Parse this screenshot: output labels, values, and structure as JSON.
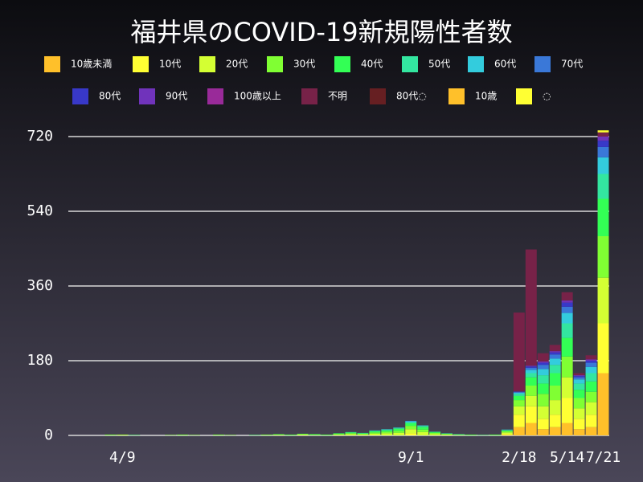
{
  "chart_data": {
    "type": "stacked_bar",
    "title": "福井県のCOVID-19新規陽性者数",
    "categories": [
      null,
      null,
      null,
      null,
      "4/9",
      null,
      null,
      null,
      null,
      null,
      null,
      null,
      null,
      null,
      null,
      null,
      null,
      null,
      null,
      null,
      null,
      null,
      null,
      null,
      null,
      null,
      null,
      null,
      "9/1",
      null,
      null,
      null,
      null,
      null,
      null,
      null,
      null,
      "2/18",
      null,
      null,
      null,
      "5/14",
      null,
      null,
      "7/21"
    ],
    "series": [
      {
        "name": "10歳未満",
        "color": "#ffc02a",
        "values": [
          0,
          0,
          0,
          0,
          0,
          0,
          0,
          0,
          0,
          0,
          0,
          0,
          0,
          0,
          0,
          0,
          0,
          0,
          0,
          0,
          0,
          0,
          0,
          0,
          0,
          0,
          0,
          0,
          0,
          0,
          0,
          0,
          0,
          0,
          0,
          0,
          1,
          20,
          30,
          15,
          20,
          30,
          15,
          20,
          150
        ]
      },
      {
        "name": "10代",
        "color": "#ffff33",
        "values": [
          0,
          0,
          0,
          0,
          0,
          0,
          0,
          0,
          0,
          0,
          0,
          0,
          0,
          0,
          0,
          0,
          0,
          0,
          0,
          0,
          0,
          0,
          0,
          0,
          0,
          0,
          0,
          0,
          5,
          0,
          0,
          0,
          0,
          0,
          0,
          0,
          2,
          30,
          40,
          25,
          30,
          60,
          25,
          30,
          120
        ]
      },
      {
        "name": "20代",
        "color": "#d4ff33",
        "values": [
          0,
          0,
          0,
          1,
          1,
          0,
          0,
          0,
          0,
          1,
          0,
          0,
          1,
          0,
          0,
          0,
          1,
          1,
          0,
          2,
          1,
          0,
          2,
          3,
          2,
          4,
          5,
          6,
          10,
          8,
          3,
          2,
          1,
          0,
          0,
          0,
          4,
          20,
          25,
          30,
          35,
          50,
          25,
          30,
          110
        ]
      },
      {
        "name": "30代",
        "color": "#80ff33",
        "values": [
          0,
          0,
          0,
          0,
          1,
          0,
          0,
          0,
          1,
          0,
          1,
          0,
          0,
          1,
          0,
          0,
          0,
          1,
          1,
          1,
          0,
          1,
          1,
          2,
          2,
          3,
          4,
          5,
          8,
          6,
          3,
          1,
          0,
          1,
          0,
          1,
          3,
          15,
          25,
          30,
          35,
          50,
          25,
          25,
          100
        ]
      },
      {
        "name": "40代",
        "color": "#33ff55",
        "values": [
          0,
          0,
          0,
          1,
          0,
          1,
          0,
          0,
          0,
          1,
          0,
          0,
          1,
          0,
          0,
          1,
          1,
          1,
          1,
          1,
          2,
          1,
          2,
          2,
          1,
          3,
          3,
          5,
          6,
          6,
          2,
          1,
          1,
          1,
          1,
          1,
          2,
          10,
          20,
          25,
          30,
          45,
          20,
          25,
          90
        ]
      },
      {
        "name": "50代",
        "color": "#33e6a0",
        "values": [
          0,
          0,
          0,
          0,
          0,
          0,
          0,
          0,
          0,
          0,
          0,
          0,
          0,
          0,
          0,
          0,
          0,
          0,
          0,
          0,
          0,
          0,
          0,
          1,
          1,
          1,
          2,
          2,
          3,
          3,
          1,
          1,
          1,
          0,
          0,
          0,
          1,
          5,
          10,
          20,
          20,
          35,
          15,
          20,
          60
        ]
      },
      {
        "name": "60代",
        "color": "#33ccdd",
        "values": [
          0,
          0,
          0,
          0,
          0,
          0,
          0,
          0,
          0,
          0,
          0,
          0,
          0,
          0,
          0,
          0,
          0,
          0,
          0,
          0,
          0,
          0,
          0,
          0,
          0,
          1,
          1,
          1,
          2,
          1,
          0,
          0,
          0,
          0,
          0,
          0,
          1,
          3,
          8,
          15,
          15,
          25,
          10,
          15,
          40
        ]
      },
      {
        "name": "70代",
        "color": "#3a78d8",
        "values": [
          0,
          0,
          0,
          0,
          0,
          0,
          0,
          0,
          0,
          0,
          0,
          0,
          0,
          0,
          0,
          0,
          0,
          0,
          0,
          0,
          0,
          0,
          0,
          0,
          0,
          0,
          0,
          0,
          1,
          0,
          0,
          0,
          0,
          0,
          0,
          0,
          0,
          2,
          5,
          10,
          10,
          15,
          5,
          10,
          25
        ]
      },
      {
        "name": "80代",
        "color": "#3838c8",
        "values": [
          0,
          0,
          0,
          0,
          0,
          0,
          0,
          0,
          0,
          0,
          0,
          0,
          0,
          0,
          0,
          0,
          0,
          0,
          0,
          0,
          0,
          0,
          0,
          0,
          0,
          0,
          0,
          0,
          0,
          0,
          0,
          0,
          0,
          0,
          0,
          0,
          0,
          1,
          3,
          5,
          5,
          10,
          3,
          5,
          15
        ]
      },
      {
        "name": "90代",
        "color": "#7033bb",
        "values": [
          0,
          0,
          0,
          0,
          0,
          0,
          0,
          0,
          0,
          0,
          0,
          0,
          0,
          0,
          0,
          0,
          0,
          0,
          0,
          0,
          0,
          0,
          0,
          0,
          0,
          0,
          0,
          0,
          0,
          0,
          0,
          0,
          0,
          0,
          0,
          0,
          0,
          0,
          2,
          3,
          3,
          5,
          2,
          3,
          10
        ]
      },
      {
        "name": "100歳以上",
        "color": "#992a99",
        "values": [
          0,
          0,
          0,
          0,
          0,
          0,
          0,
          0,
          0,
          0,
          0,
          0,
          0,
          0,
          0,
          0,
          0,
          0,
          0,
          0,
          0,
          0,
          0,
          0,
          0,
          0,
          0,
          0,
          0,
          0,
          0,
          0,
          0,
          0,
          0,
          0,
          0,
          0,
          0,
          0,
          0,
          0,
          0,
          0,
          0
        ]
      },
      {
        "name": "不明",
        "color": "#772248",
        "values": [
          0,
          0,
          0,
          0,
          0,
          0,
          0,
          0,
          0,
          0,
          0,
          0,
          0,
          0,
          0,
          0,
          0,
          0,
          0,
          0,
          0,
          0,
          0,
          0,
          0,
          0,
          0,
          0,
          0,
          0,
          0,
          0,
          0,
          0,
          0,
          0,
          0,
          190,
          280,
          20,
          15,
          20,
          5,
          10,
          10
        ]
      },
      {
        "name": "80代◌",
        "color": "#661f22",
        "values": [
          0,
          0,
          0,
          0,
          0,
          0,
          0,
          0,
          0,
          0,
          0,
          0,
          0,
          0,
          0,
          0,
          0,
          0,
          0,
          0,
          0,
          0,
          0,
          0,
          0,
          0,
          0,
          0,
          0,
          0,
          0,
          0,
          0,
          0,
          0,
          0,
          0,
          0,
          0,
          0,
          0,
          0,
          0,
          0,
          0
        ]
      },
      {
        "name": "10歳",
        "color": "#ffc02a",
        "values": [
          0,
          0,
          0,
          0,
          0,
          0,
          0,
          0,
          0,
          0,
          0,
          0,
          0,
          0,
          0,
          0,
          0,
          0,
          0,
          0,
          0,
          0,
          0,
          0,
          0,
          0,
          0,
          0,
          0,
          0,
          0,
          0,
          0,
          0,
          0,
          0,
          0,
          0,
          0,
          0,
          0,
          0,
          0,
          0,
          0
        ]
      },
      {
        "name": "◌",
        "color": "#ffff33",
        "values": [
          0,
          0,
          0,
          0,
          0,
          0,
          0,
          0,
          0,
          0,
          0,
          0,
          0,
          0,
          0,
          0,
          0,
          0,
          0,
          0,
          0,
          0,
          0,
          0,
          0,
          0,
          0,
          0,
          0,
          0,
          0,
          0,
          0,
          0,
          0,
          0,
          0,
          0,
          0,
          0,
          0,
          0,
          0,
          0,
          5
        ]
      }
    ],
    "ylim": [
      0,
      720
    ],
    "yticks": [
      0,
      180,
      360,
      540,
      720
    ],
    "grid": true
  }
}
